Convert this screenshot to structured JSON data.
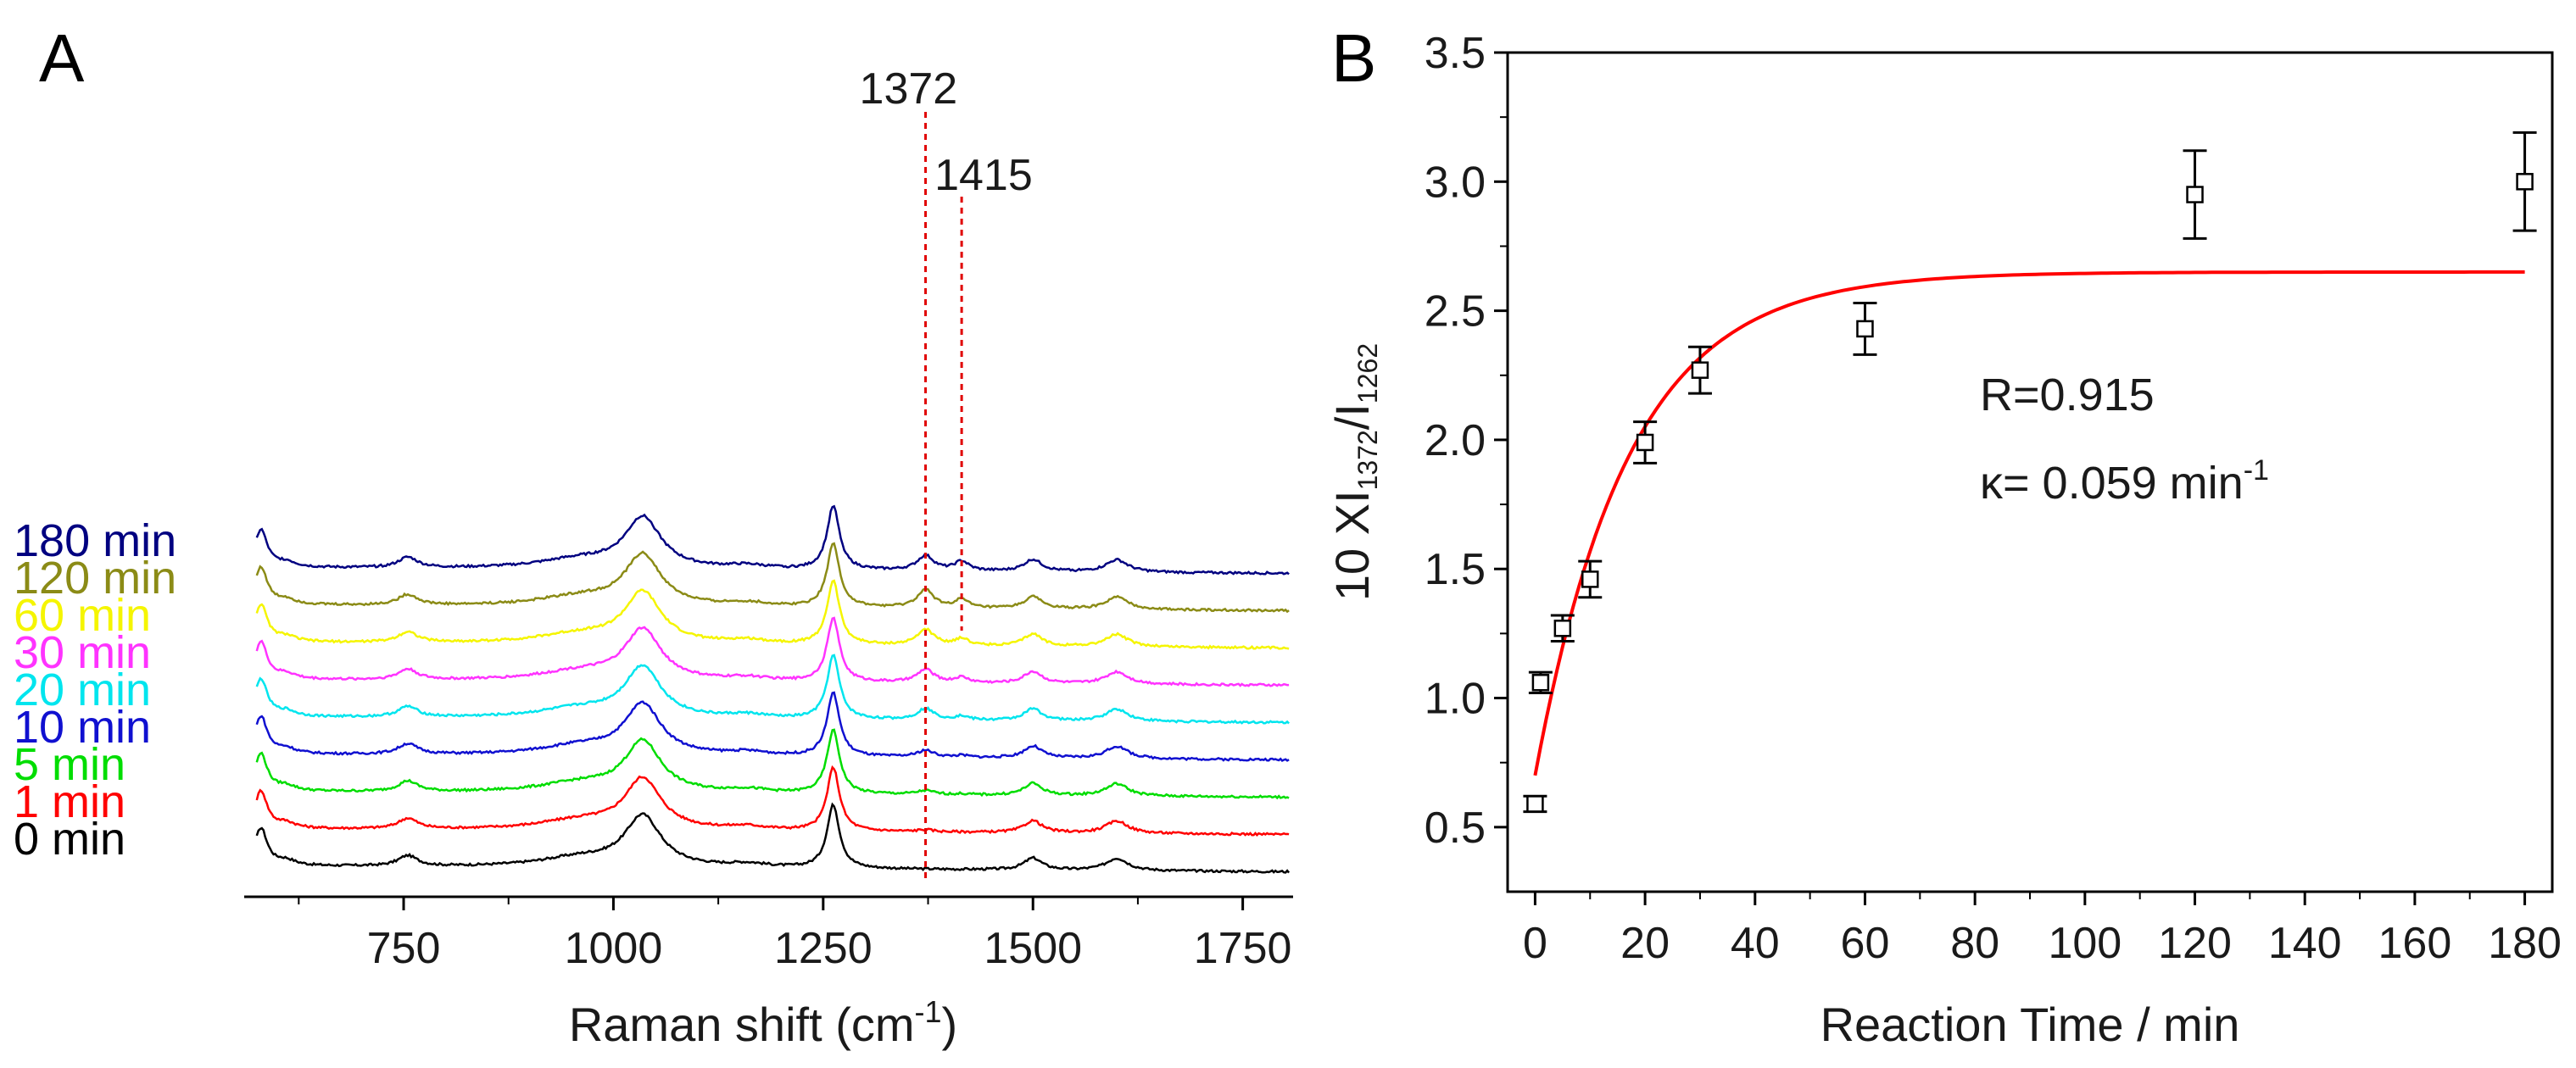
{
  "panel_a_letter": "A",
  "panel_b_letter": "B",
  "chart_data": [
    {
      "panel": "A",
      "type": "line",
      "xlabel_main": "Raman shift (cm",
      "xlabel_sup": "-1",
      "xlabel_end": ")",
      "xlim": [
        560,
        1810
      ],
      "xticks": [
        750,
        1000,
        1250,
        1500,
        1750
      ],
      "peaks": [
        {
          "pos": 580,
          "height": 1.0,
          "width": 9
        },
        {
          "pos": 610,
          "height": 0.14,
          "width": 14
        },
        {
          "pos": 755,
          "height": 0.28,
          "width": 14
        },
        {
          "pos": 1035,
          "height": 1.35,
          "width": 26
        },
        {
          "pos": 960,
          "height": 0.25,
          "width": 60
        },
        {
          "pos": 1160,
          "height": 0.1,
          "width": 30
        },
        {
          "pos": 1262,
          "height": 1.7,
          "width": 9
        },
        {
          "pos": 1500,
          "height": 0.32,
          "width": 13
        },
        {
          "pos": 1600,
          "height": 0.33,
          "width": 16
        }
      ],
      "series": [
        {
          "name": "0 min",
          "color": "#000000",
          "i1372": 0.0,
          "i1415": 0.0
        },
        {
          "name": "1 min",
          "color": "#ff0000",
          "i1372": 0.05,
          "i1415": 0.0
        },
        {
          "name": "5 min",
          "color": "#00dd00",
          "i1372": 0.1,
          "i1415": 0.02
        },
        {
          "name": "10 min",
          "color": "#1010d0",
          "i1372": 0.18,
          "i1415": 0.05
        },
        {
          "name": "20 min",
          "color": "#00e5ee",
          "i1372": 0.3,
          "i1415": 0.1
        },
        {
          "name": "30 min",
          "color": "#ff33ff",
          "i1372": 0.35,
          "i1415": 0.14
        },
        {
          "name": "60 min",
          "color": "#f5f500",
          "i1372": 0.42,
          "i1415": 0.18
        },
        {
          "name": "120 min",
          "color": "#8b8b16",
          "i1372": 0.48,
          "i1415": 0.22
        },
        {
          "name": "180 min",
          "color": "#000080",
          "i1372": 0.4,
          "i1415": 0.25
        }
      ],
      "annotations": [
        {
          "label": "1372",
          "x": 1372,
          "color": "#e00000"
        },
        {
          "label": "1415",
          "x": 1415,
          "color": "#e00000"
        }
      ]
    },
    {
      "panel": "B",
      "type": "scatter",
      "xlabel": "Reaction Time / min",
      "ylabel_prefix": "10 XI",
      "ylabel_sub1": "1372",
      "ylabel_mid": "/I",
      "ylabel_sub2": "1262",
      "xlim": [
        -5,
        185
      ],
      "ylim": [
        0.25,
        3.5
      ],
      "xticks": [
        0,
        20,
        40,
        60,
        80,
        100,
        120,
        140,
        160,
        180
      ],
      "yticks": [
        0.5,
        1.0,
        1.5,
        2.0,
        2.5,
        3.0,
        3.5
      ],
      "points": [
        {
          "x": 0,
          "y": 0.59,
          "err": 0.03,
          "xerr": 0.8
        },
        {
          "x": 1,
          "y": 1.06,
          "err": 0.04,
          "xerr": 0.8
        },
        {
          "x": 5,
          "y": 1.27,
          "err": 0.05,
          "xerr": 0.8
        },
        {
          "x": 10,
          "y": 1.46,
          "err": 0.07,
          "xerr": 0.8
        },
        {
          "x": 20,
          "y": 1.99,
          "err": 0.08,
          "xerr": 0.8
        },
        {
          "x": 30,
          "y": 2.27,
          "err": 0.09,
          "xerr": 0.8
        },
        {
          "x": 60,
          "y": 2.43,
          "err": 0.1,
          "xerr": 0.8
        },
        {
          "x": 120,
          "y": 2.95,
          "err": 0.17,
          "xerr": 0.8
        },
        {
          "x": 180,
          "y": 3.0,
          "err": 0.19,
          "xerr": 0.8
        }
      ],
      "fit": {
        "color": "#ff0000",
        "y0": 0.7,
        "ymax": 2.65,
        "k": 0.059,
        "x_start": 0,
        "x_end": 180
      },
      "fit_label_r": "R=0.915",
      "fit_label_k": "κ= 0.059 min",
      "fit_label_k_sup": "-1"
    }
  ]
}
